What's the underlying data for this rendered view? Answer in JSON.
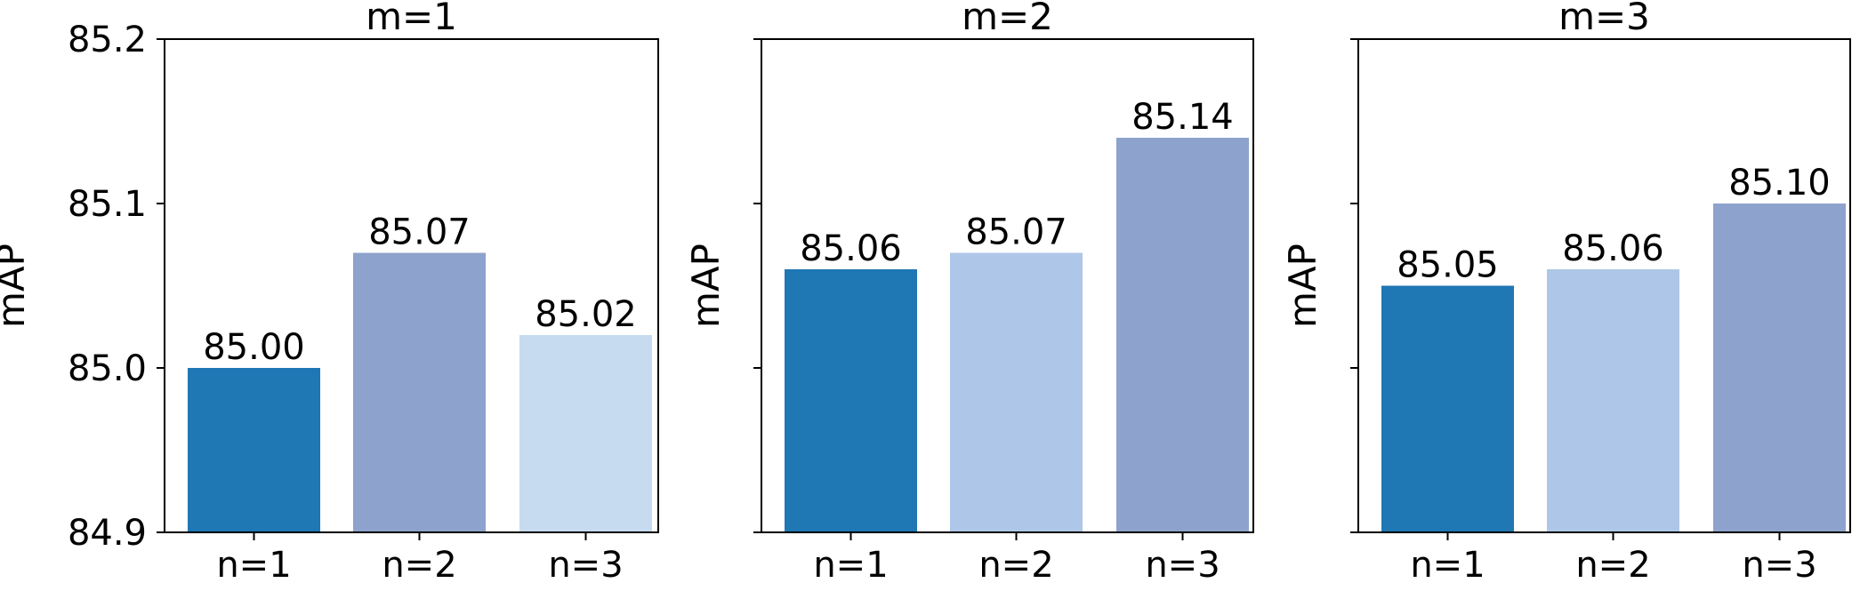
{
  "chart_data": [
    {
      "type": "bar",
      "title": "m=1",
      "ylabel": "mAP",
      "xlabel": "",
      "categories": [
        "n=1",
        "n=2",
        "n=3"
      ],
      "values": [
        85.0,
        85.07,
        85.02
      ],
      "value_labels": [
        "85.00",
        "85.07",
        "85.02"
      ],
      "colors": [
        "#1f77b4",
        "#8da2cc",
        "#c6dbef"
      ],
      "ylim": [
        84.9,
        85.2
      ],
      "yticks": [
        "84.9",
        "85.0",
        "85.1",
        "85.2"
      ],
      "show_ytick_labels": true,
      "grid": false,
      "legend": "none"
    },
    {
      "type": "bar",
      "title": "m=2",
      "ylabel": "mAP",
      "xlabel": "",
      "categories": [
        "n=1",
        "n=2",
        "n=3"
      ],
      "values": [
        85.06,
        85.07,
        85.14
      ],
      "value_labels": [
        "85.06",
        "85.07",
        "85.14"
      ],
      "colors": [
        "#1f77b4",
        "#aec7e8",
        "#8da2cc"
      ],
      "ylim": [
        84.9,
        85.2
      ],
      "yticks": [
        "84.9",
        "85.0",
        "85.1",
        "85.2"
      ],
      "show_ytick_labels": false,
      "grid": false,
      "legend": "none"
    },
    {
      "type": "bar",
      "title": "m=3",
      "ylabel": "mAP",
      "xlabel": "",
      "categories": [
        "n=1",
        "n=2",
        "n=3"
      ],
      "values": [
        85.05,
        85.06,
        85.1
      ],
      "value_labels": [
        "85.05",
        "85.06",
        "85.10"
      ],
      "colors": [
        "#1f77b4",
        "#aec7e8",
        "#8da2cc"
      ],
      "ylim": [
        84.9,
        85.2
      ],
      "yticks": [
        "84.9",
        "85.0",
        "85.1",
        "85.2"
      ],
      "show_ytick_labels": false,
      "grid": false,
      "legend": "none"
    }
  ]
}
